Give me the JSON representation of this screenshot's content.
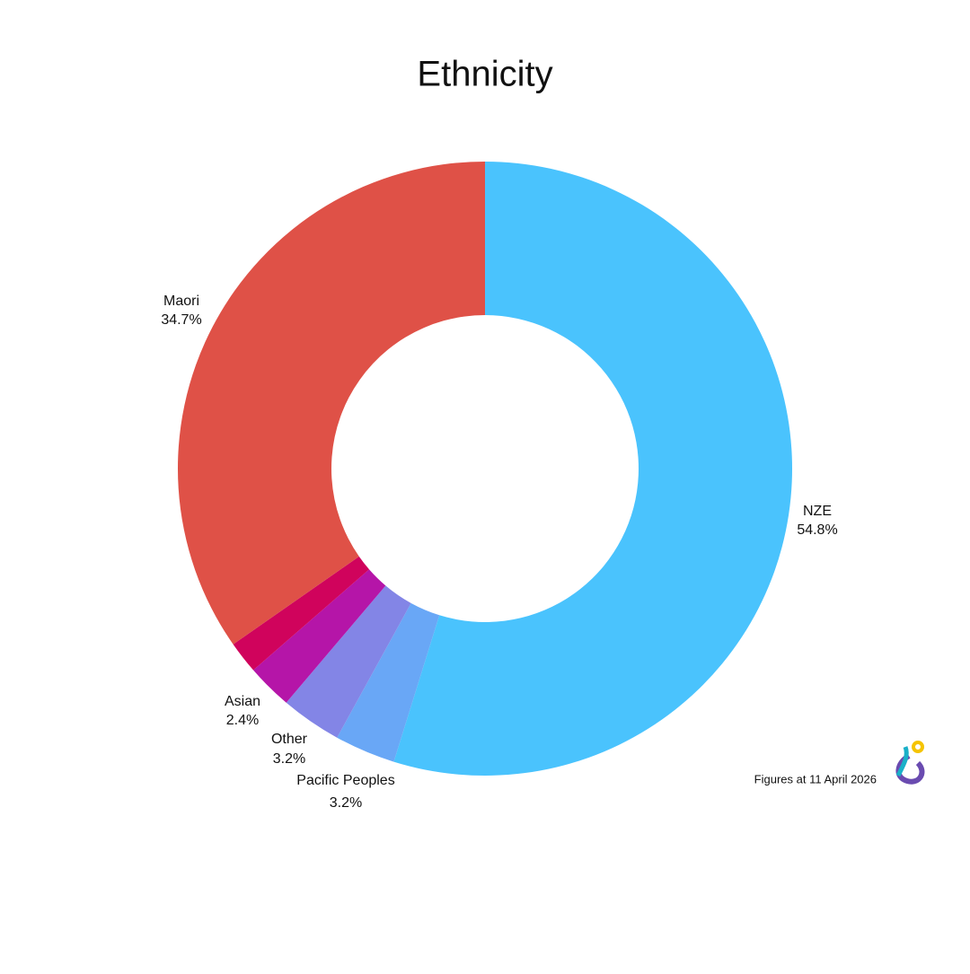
{
  "chart_data": {
    "type": "donut",
    "title": "Ethnicity",
    "categories": [
      "NZE",
      "Pacific Peoples",
      "Other",
      "Asian",
      null,
      "Maori"
    ],
    "values": [
      54.8,
      3.2,
      3.2,
      2.4,
      1.7,
      34.7
    ],
    "value_labels": [
      "54.8%",
      "3.2%",
      "3.2%",
      "2.4%",
      null,
      "34.7%"
    ],
    "colors": [
      "#4ac3fd",
      "#69a7f6",
      "#8385e6",
      "#b515a8",
      "#d0035c",
      "#df5147"
    ],
    "footnote": "Figures at 11 April 2026"
  }
}
